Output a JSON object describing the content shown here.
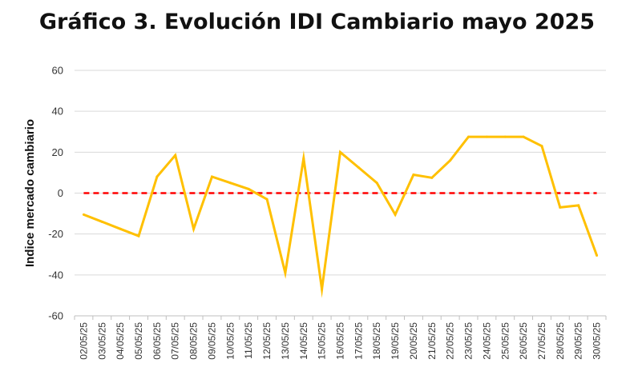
{
  "chart_data": {
    "type": "line",
    "title": "Gráfico 3. Evolución IDI Cambiario mayo 2025",
    "xlabel": "",
    "ylabel": "Indice mercado cambiario",
    "ylim": [
      -60,
      60
    ],
    "yticks": [
      60,
      40,
      20,
      0,
      -20,
      -40,
      -60
    ],
    "grid": "horizontal",
    "legend": "none",
    "x": [
      "02/05/25",
      "03/05/25",
      "04/05/25",
      "05/05/25",
      "06/05/25",
      "07/05/25",
      "08/05/25",
      "09/05/25",
      "10/05/25",
      "11/05/25",
      "12/05/25",
      "13/05/25",
      "14/05/25",
      "15/05/25",
      "16/05/25",
      "17/05/25",
      "18/05/25",
      "19/05/25",
      "20/05/25",
      "21/05/25",
      "22/05/25",
      "23/05/25",
      "24/05/25",
      "25/05/25",
      "26/05/25",
      "27/05/25",
      "28/05/25",
      "29/05/25",
      "30/05/25"
    ],
    "series": [
      {
        "color": "#FFC000",
        "values": [
          -10.5,
          -14,
          -17.5,
          -21,
          8,
          18.5,
          -17.5,
          8,
          5,
          2,
          -3,
          -39,
          17,
          -47,
          20,
          12.5,
          5,
          -10.5,
          9,
          7.5,
          16,
          27.5,
          27.5,
          27.5,
          27.5,
          23,
          -7,
          -6,
          -30.5
        ]
      }
    ],
    "reference_line": {
      "value": 0,
      "color": "#FF0000",
      "style": "dashed"
    }
  }
}
